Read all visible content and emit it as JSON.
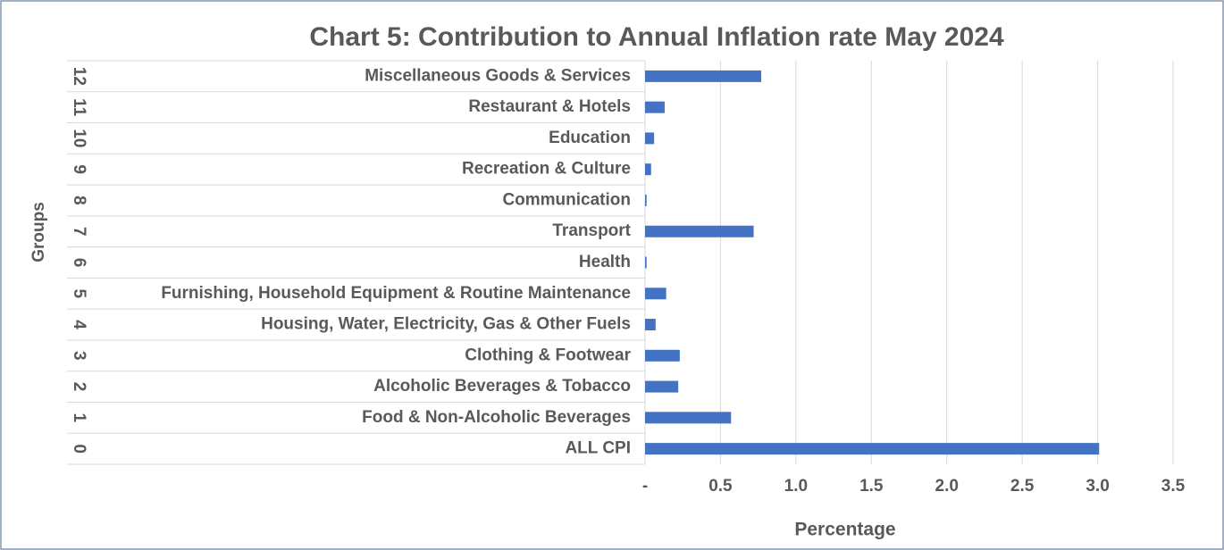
{
  "chart_data": {
    "type": "bar",
    "orientation": "horizontal",
    "title": "Chart 5: Contribution to Annual Inflation rate May 2024",
    "x_label": "Percentage",
    "y_label": "Groups",
    "groups": [
      "0",
      "1",
      "2",
      "3",
      "4",
      "5",
      "6",
      "7",
      "8",
      "9",
      "10",
      "11",
      "12"
    ],
    "categories": [
      "ALL CPI",
      "Food & Non-Alcoholic Beverages",
      "Alcoholic Beverages & Tobacco",
      "Clothing & Footwear",
      "Housing, Water, Electricity,  Gas & Other Fuels",
      "Furnishing, Household Equipment & Routine Maintenance",
      "Health",
      "Transport",
      "Communication",
      "Recreation & Culture",
      "Education",
      "Restaurant & Hotels",
      "Miscellaneous Goods &  Services"
    ],
    "values": [
      3.01,
      0.57,
      0.22,
      0.23,
      0.07,
      0.14,
      0.01,
      0.72,
      0.01,
      0.04,
      0.06,
      0.13,
      0.77
    ],
    "color": "#4472c4",
    "xlim": [
      0,
      3.5
    ],
    "xticks": [
      {
        "value": 0,
        "label": "-"
      },
      0.5,
      {
        "value": 1,
        "label": "1.0"
      },
      1.5,
      {
        "value": 2,
        "label": "2.0"
      },
      2.5,
      {
        "value": 3,
        "label": "3.0"
      },
      3.5
    ],
    "grid": true
  }
}
